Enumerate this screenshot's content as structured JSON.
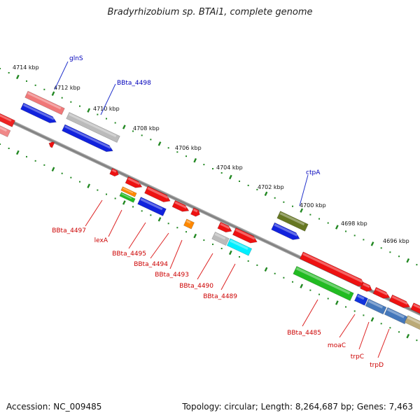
{
  "title": "Bradyrhizobium sp. BTAi1, complete genome",
  "footer": {
    "accession": "Accession: NC_009485",
    "summary": "Topology: circular; Length: 8,264,687 bp; Genes: 7,463"
  },
  "colors": {
    "red": "#ee1111",
    "blue": "#1122dd",
    "label_red": "#cc0000",
    "label_blue": "#0000bb",
    "tick_green": "#228822",
    "backbone": "#888888"
  },
  "ticks": [
    {
      "label": "4714 kbp"
    },
    {
      "label": "4712 kbp"
    },
    {
      "label": "4710 kbp"
    },
    {
      "label": "4708 kbp"
    },
    {
      "label": "4706 kbp"
    },
    {
      "label": "4704 kbp"
    },
    {
      "label": "4702 kbp"
    },
    {
      "label": "4700 kbp"
    },
    {
      "label": "4698 kbp"
    },
    {
      "label": "4696 kbp"
    }
  ],
  "gene_labels": [
    {
      "name": "glnS",
      "color": "blue"
    },
    {
      "name": "BBta_4498",
      "color": "blue"
    },
    {
      "name": "ctpA",
      "color": "blue"
    },
    {
      "name": "BBta_4497",
      "color": "red"
    },
    {
      "name": "lexA",
      "color": "red"
    },
    {
      "name": "BBta_4495",
      "color": "red"
    },
    {
      "name": "BBta_4494",
      "color": "red"
    },
    {
      "name": "BBta_4493",
      "color": "red"
    },
    {
      "name": "BBta_4490",
      "color": "red"
    },
    {
      "name": "BBta_4489",
      "color": "red"
    },
    {
      "name": "BBta_4485",
      "color": "red"
    },
    {
      "name": "moaC",
      "color": "red"
    },
    {
      "name": "trpC",
      "color": "red"
    },
    {
      "name": "trpD",
      "color": "red"
    }
  ]
}
